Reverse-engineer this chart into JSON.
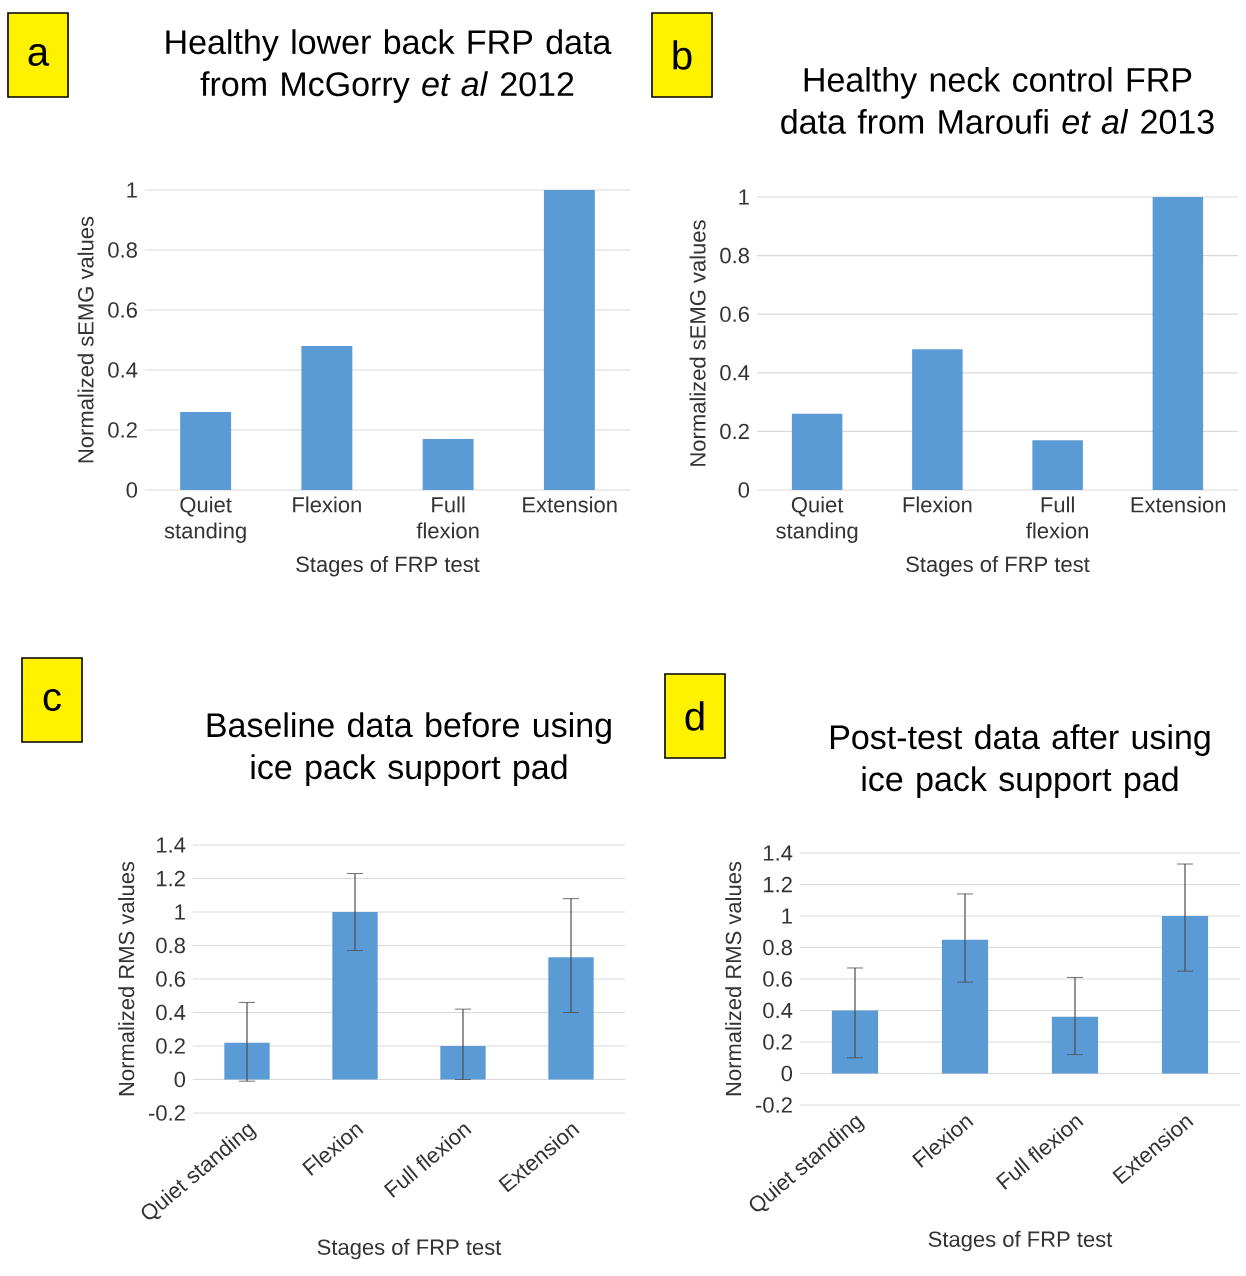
{
  "chart_data": [
    {
      "type": "bar",
      "title": "Healthy lower back FRP data from McGorry *et al* 2012",
      "xlabel": "Stages of FRP test",
      "ylabel": "Normalized sEMG values",
      "annotations": [
        "a"
      ],
      "categories": [
        "Quiet standing",
        "Flexion",
        "Full flexion",
        "Extension"
      ],
      "values": [
        0.26,
        0.48,
        0.17,
        1.0
      ],
      "color": "#5b9bd5",
      "ylim": [
        0,
        1
      ],
      "yticks": [
        0,
        0.2,
        0.4,
        0.6,
        0.8,
        1
      ],
      "grid": "y"
    },
    {
      "type": "bar",
      "title": "Healthy neck control FRP data from Maroufi *et al* 2013",
      "xlabel": "Stages of FRP test",
      "ylabel": "Normalized sEMG values",
      "annotations": [
        "b"
      ],
      "categories": [
        "Quiet standing",
        "Flexion",
        "Full flexion",
        "Extension"
      ],
      "values": [
        0.26,
        0.48,
        0.17,
        1.0
      ],
      "color": "#5b9bd5",
      "ylim": [
        0,
        1
      ],
      "yticks": [
        0,
        0.2,
        0.4,
        0.6,
        0.8,
        1
      ],
      "grid": "y"
    },
    {
      "type": "bar",
      "title": "Baseline data before using ice pack support pad",
      "xlabel": "Stages of FRP test",
      "ylabel": "Normalized RMS values",
      "annotations": [
        "c"
      ],
      "categories": [
        "Quiet standing",
        "Flexion",
        "Full flexion",
        "Extension"
      ],
      "values": [
        0.22,
        1.0,
        0.2,
        0.73
      ],
      "errors": [
        [
          -0.01,
          0.46
        ],
        [
          0.77,
          1.23
        ],
        [
          0.0,
          0.42
        ],
        [
          0.4,
          1.08
        ]
      ],
      "color": "#5b9bd5",
      "ylim": [
        -0.2,
        1.4
      ],
      "yticks": [
        -0.2,
        0,
        0.2,
        0.4,
        0.6,
        0.8,
        1,
        1.2,
        1.4
      ],
      "grid": "y"
    },
    {
      "type": "bar",
      "title": "Post-test data after using ice pack support pad",
      "xlabel": "Stages of FRP test",
      "ylabel": "Normalized RMS values",
      "annotations": [
        "d"
      ],
      "categories": [
        "Quiet standing",
        "Flexion",
        "Full flexion",
        "Extension"
      ],
      "values": [
        0.4,
        0.85,
        0.36,
        1.0
      ],
      "errors": [
        [
          0.1,
          0.67
        ],
        [
          0.58,
          1.14
        ],
        [
          0.12,
          0.61
        ],
        [
          0.65,
          1.33
        ]
      ],
      "color": "#5b9bd5",
      "ylim": [
        -0.2,
        1.4
      ],
      "yticks": [
        -0.2,
        0,
        0.2,
        0.4,
        0.6,
        0.8,
        1,
        1.2,
        1.4
      ],
      "grid": "y"
    }
  ]
}
